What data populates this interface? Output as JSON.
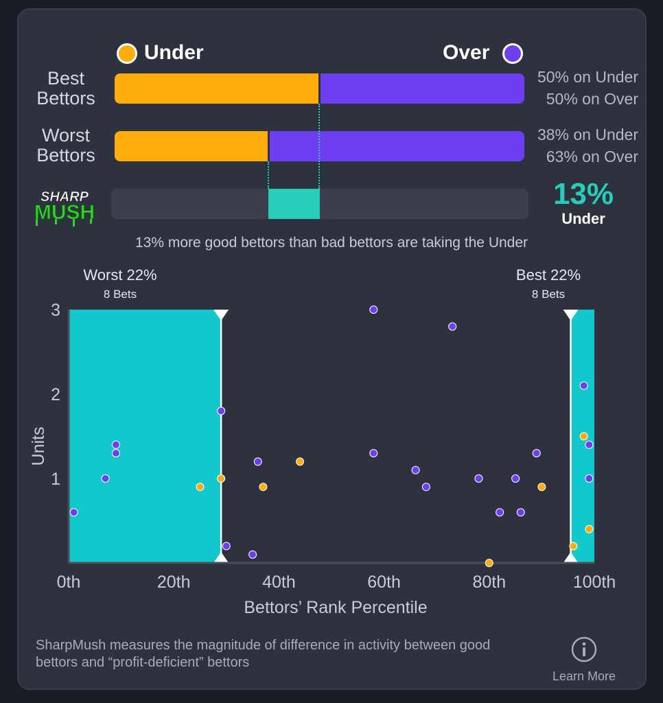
{
  "legend": {
    "under_label": "Under",
    "over_label": "Over"
  },
  "rows": [
    {
      "label_line1": "Best",
      "label_line2": "Bettors",
      "under_pct": 50,
      "over_pct": 50,
      "under_text": "50% on Under",
      "over_text": "50% on Over"
    },
    {
      "label_line1": "Worst",
      "label_line2": "Bettors",
      "under_pct": 38,
      "over_pct": 63,
      "under_text": "38% on Under",
      "over_text": "63% on Over"
    }
  ],
  "logo": {
    "line1": "SHARP",
    "line2": "MUSH"
  },
  "difference": {
    "pct_text": "13%",
    "direction": "Under",
    "from_pct": 38,
    "to_pct": 50
  },
  "summary": "13% more good bettors than bad bettors are taking the Under",
  "bands": {
    "worst": {
      "title": "Worst 22%",
      "sub": "8 Bets",
      "from": 0,
      "to": 29
    },
    "best": {
      "title": "Best 22%",
      "sub": "8 Bets",
      "from": 95.5,
      "to": 100
    }
  },
  "colors": {
    "under": "#ffad0d",
    "over": "#6e3ff0",
    "band": "#12c8cc",
    "accent": "#27cdb8"
  },
  "chart_data": {
    "type": "scatter",
    "xlabel": "Bettors’ Rank Percentile",
    "ylabel": "Units",
    "x_ticks": [
      "0th",
      "20th",
      "40th",
      "60th",
      "80th",
      "100th"
    ],
    "x_tick_values": [
      0,
      20,
      40,
      60,
      80,
      100
    ],
    "y_ticks": [
      1,
      2,
      3
    ],
    "xlim": [
      0,
      100
    ],
    "ylim": [
      0,
      3
    ],
    "grid": false,
    "series": [
      {
        "name": "Over",
        "color": "#6e3ff0",
        "points": [
          [
            1,
            0.6
          ],
          [
            7,
            1.0
          ],
          [
            9,
            1.3
          ],
          [
            9,
            1.4
          ],
          [
            29,
            1.8
          ],
          [
            30,
            0.2
          ],
          [
            35,
            0.1
          ],
          [
            36,
            1.2
          ],
          [
            58,
            3.0
          ],
          [
            58,
            1.3
          ],
          [
            73,
            2.8
          ],
          [
            66,
            1.1
          ],
          [
            68,
            0.9
          ],
          [
            78,
            1.0
          ],
          [
            82,
            0.6
          ],
          [
            85,
            1.0
          ],
          [
            86,
            0.6
          ],
          [
            89,
            1.3
          ],
          [
            98,
            2.1
          ],
          [
            99,
            1.4
          ],
          [
            99,
            1.0
          ]
        ]
      },
      {
        "name": "Under",
        "color": "#ffad0d",
        "points": [
          [
            25,
            0.9
          ],
          [
            29,
            1.0
          ],
          [
            37,
            0.9
          ],
          [
            44,
            1.2
          ],
          [
            80,
            0.0
          ],
          [
            90,
            0.9
          ],
          [
            96,
            0.2
          ],
          [
            98,
            1.5
          ],
          [
            99,
            0.4
          ]
        ]
      }
    ]
  },
  "footer": {
    "description": "SharpMush measures the magnitude of difference in activity between good bettors and “profit-deficient” bettors",
    "learn_more": "Learn More"
  }
}
